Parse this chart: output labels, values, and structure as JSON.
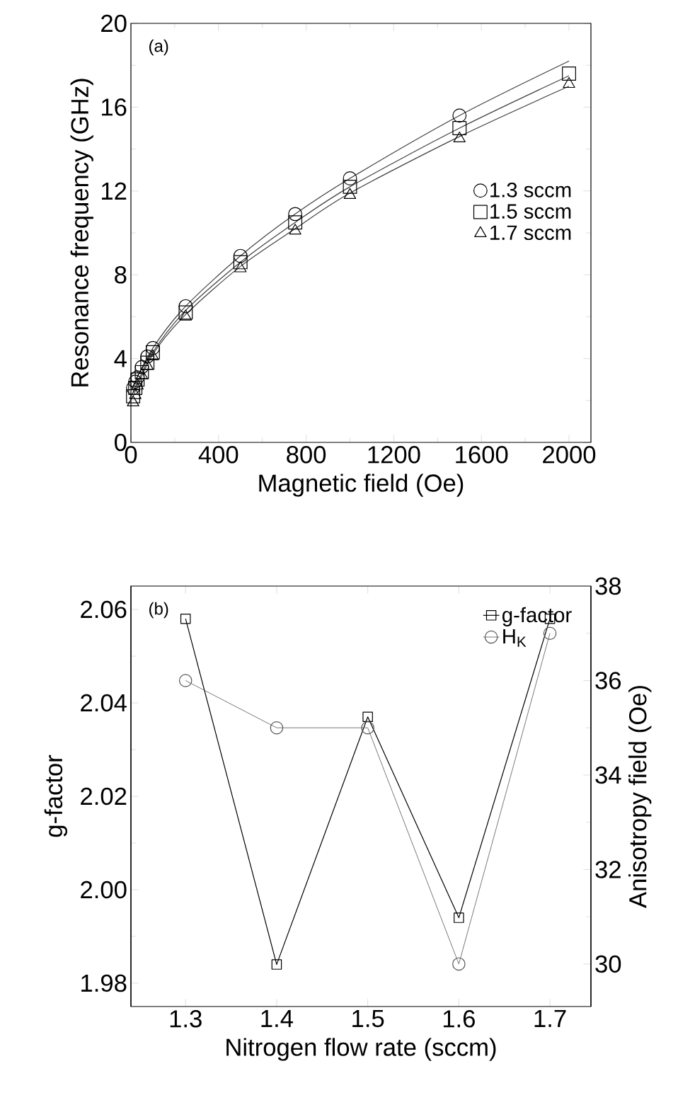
{
  "chart_data": [
    {
      "type": "scatter",
      "xlabel": "Magnetic field (Oe)",
      "ylabel": "Resonance frequency (GHz)",
      "annotations": [
        "(a)"
      ],
      "xlim": [
        0,
        2100
      ],
      "ylim": [
        0,
        20
      ],
      "xticks": [
        0,
        400,
        800,
        1200,
        1600,
        2000
      ],
      "yticks": [
        0,
        4,
        8,
        12,
        16,
        20
      ],
      "grid": false,
      "legend": "right",
      "series": [
        {
          "name": "1.3 sccm",
          "marker": "circle",
          "color": "#000000",
          "x": [
            10,
            20,
            30,
            50,
            75,
            100,
            250,
            500,
            750,
            1000,
            1500
          ],
          "values": [
            2.6,
            2.9,
            3.1,
            3.6,
            4.1,
            4.5,
            6.5,
            8.9,
            10.9,
            12.6,
            15.6
          ]
        },
        {
          "name": "1.5 sccm",
          "marker": "square",
          "color": "#000000",
          "x": [
            10,
            20,
            30,
            50,
            75,
            100,
            250,
            500,
            750,
            1000,
            1500,
            2000
          ],
          "values": [
            2.2,
            2.6,
            3.0,
            3.35,
            3.8,
            4.3,
            6.2,
            8.6,
            10.5,
            12.2,
            15.0,
            17.6
          ]
        },
        {
          "name": "1.7 sccm",
          "marker": "triangle",
          "color": "#000000",
          "x": [
            10,
            20,
            30,
            50,
            75,
            100,
            250,
            500,
            750,
            1000,
            1500,
            2000
          ],
          "values": [
            1.9,
            2.25,
            2.7,
            3.2,
            3.65,
            4.1,
            6.0,
            8.3,
            10.1,
            11.8,
            14.5,
            17.1
          ]
        },
        {
          "type": "line",
          "marker": "none",
          "color": "#404040",
          "x": [
            10,
            100,
            250,
            500,
            750,
            1000,
            1500,
            2000
          ],
          "values": [
            2.7,
            4.5,
            6.5,
            8.9,
            10.9,
            12.6,
            15.6,
            18.2
          ]
        },
        {
          "type": "line",
          "marker": "none",
          "color": "#404040",
          "x": [
            10,
            100,
            250,
            500,
            750,
            1000,
            1500,
            2000
          ],
          "values": [
            2.4,
            4.3,
            6.3,
            8.6,
            10.5,
            12.2,
            15.0,
            17.5
          ]
        },
        {
          "type": "line",
          "marker": "none",
          "color": "#404040",
          "x": [
            10,
            100,
            250,
            500,
            750,
            1000,
            1500,
            2000
          ],
          "values": [
            2.2,
            4.2,
            6.1,
            8.4,
            10.2,
            11.9,
            14.6,
            17.0
          ]
        }
      ]
    },
    {
      "type": "line",
      "xlabel": "Nitrogen flow rate (sccm)",
      "ylabel": "g-factor",
      "y2label": "Anisotropy field (Oe)",
      "annotations": [
        "(b)"
      ],
      "xlim": [
        1.24,
        1.745
      ],
      "ylim": [
        1.975,
        2.065
      ],
      "y2lim": [
        29.1,
        38.0
      ],
      "xticks": [
        1.3,
        1.4,
        1.5,
        1.6,
        1.7
      ],
      "yticks": [
        1.98,
        {
          "value": 2.0,
          "label": "2.00"
        },
        2.02,
        2.04,
        2.06
      ],
      "y2ticks": [
        30,
        32,
        34,
        36,
        38
      ],
      "grid": false,
      "legend": "top right",
      "series": [
        {
          "name": "g-factor",
          "marker": "square",
          "color": "#000000",
          "x": [
            1.3,
            1.4,
            1.5,
            1.6,
            1.7
          ],
          "values": [
            2.058,
            1.984,
            2.037,
            1.994,
            2.058
          ]
        },
        {
          "name": "H$_{K}$",
          "marker": "circle",
          "axis": "y2",
          "color": "#555555",
          "x": [
            1.3,
            1.4,
            1.5,
            1.6,
            1.7
          ],
          "values": [
            36,
            35,
            35,
            30,
            37
          ]
        }
      ]
    }
  ]
}
